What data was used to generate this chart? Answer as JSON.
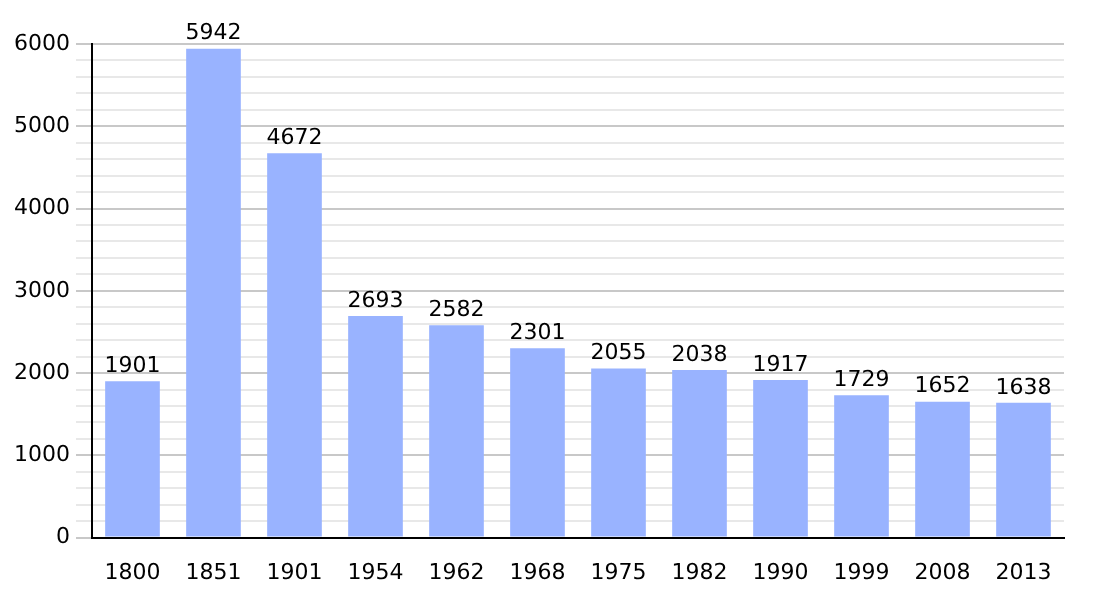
{
  "chart_data": {
    "type": "bar",
    "categories": [
      "1800",
      "1851",
      "1901",
      "1954",
      "1962",
      "1968",
      "1975",
      "1982",
      "1990",
      "1999",
      "2008",
      "2013"
    ],
    "values": [
      1901,
      5942,
      4672,
      2693,
      2582,
      2301,
      2055,
      2038,
      1917,
      1729,
      1652,
      1638
    ],
    "color": "#99b3ff",
    "ylim": [
      0,
      6000
    ],
    "yticks": [
      0,
      {
        "value": 200,
        "label": null
      },
      {
        "value": 400,
        "label": null
      },
      {
        "value": 600,
        "label": null
      },
      {
        "value": 800,
        "label": null
      },
      1000,
      {
        "value": 1200,
        "label": null
      },
      {
        "value": 1400,
        "label": null
      },
      {
        "value": 1600,
        "label": null
      },
      {
        "value": 1800,
        "label": null
      },
      2000,
      {
        "value": 2200,
        "label": null
      },
      {
        "value": 2400,
        "label": null
      },
      {
        "value": 2600,
        "label": null
      },
      {
        "value": 2800,
        "label": null
      },
      3000,
      {
        "value": 3200,
        "label": null
      },
      {
        "value": 3400,
        "label": null
      },
      {
        "value": 3600,
        "label": null
      },
      {
        "value": 3800,
        "label": null
      },
      4000,
      {
        "value": 4200,
        "label": null
      },
      {
        "value": 4400,
        "label": null
      },
      {
        "value": 4600,
        "label": null
      },
      {
        "value": 4800,
        "label": null
      },
      5000,
      {
        "value": 5200,
        "label": null
      },
      {
        "value": 5400,
        "label": null
      },
      {
        "value": 5600,
        "label": null
      },
      {
        "value": 5800,
        "label": null
      },
      6000
    ],
    "grid": "y",
    "data_labels": true
  }
}
